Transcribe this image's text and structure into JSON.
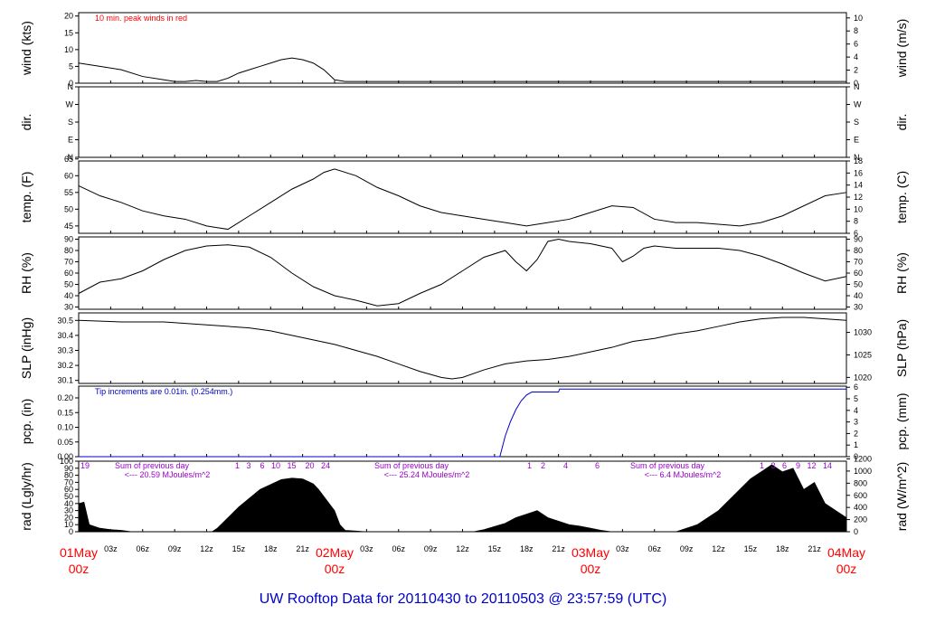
{
  "colors": {
    "axis": "#000000",
    "series": "#000000",
    "peak": "#ff0000",
    "pcp": "#0000cc",
    "annot_purple": "#9900cc",
    "day_label": "#ff0000",
    "title": "#0000cc"
  },
  "chart_data": {
    "type": "line",
    "title": "UW Rooftop Data for 20110430  to  20110503 @ 23:57:59  (UTC)",
    "x_range_hours": [
      0,
      72
    ],
    "x_ticks": [
      "03z",
      "06z",
      "09z",
      "12z",
      "15z",
      "18z",
      "21z",
      "03z",
      "06z",
      "09z",
      "12z",
      "15z",
      "18z",
      "21z",
      "03z",
      "06z",
      "09z",
      "12z",
      "15z",
      "18z",
      "21z"
    ],
    "day_labels": [
      {
        "day": "01May",
        "hour": "00z"
      },
      {
        "day": "02May",
        "hour": "00z"
      },
      {
        "day": "03May",
        "hour": "00z"
      },
      {
        "day": "04May",
        "hour": "00z"
      }
    ],
    "panels": [
      {
        "id": "wind",
        "ylabel_left": "wind (kts)",
        "ylabel_right": "wind (m/s)",
        "ylim": [
          0,
          21
        ],
        "left_ticks": [
          "0",
          "5",
          "10",
          "15",
          "20"
        ],
        "left_tick_values": [
          0,
          5,
          10,
          15,
          20
        ],
        "right_ticks": [
          "0",
          "2",
          "4",
          "6",
          "8",
          "10"
        ],
        "right_tick_values": [
          0,
          3.89,
          7.78,
          11.66,
          15.55,
          19.44
        ],
        "annotation": "10 min. peak winds in red",
        "series": [
          {
            "x": [
              0,
              2,
              4,
              6,
              8,
              9,
              10,
              11,
              12,
              13,
              14,
              15,
              16,
              17,
              18,
              19,
              20,
              21,
              22,
              23,
              24,
              25,
              26,
              27,
              28,
              29,
              30,
              31,
              32,
              33,
              34,
              35,
              36,
              37,
              38,
              39,
              40,
              41,
              42,
              43,
              44,
              45,
              46,
              47,
              48,
              49,
              50,
              51,
              52,
              53,
              54,
              55,
              56,
              57,
              58,
              59,
              60,
              61,
              62,
              63,
              64,
              65,
              66,
              67,
              68,
              69,
              70,
              71,
              72
            ],
            "y": [
              6,
              5,
              4,
              2,
              1,
              0.5,
              0.5,
              0.8,
              0.5,
              0.5,
              1.5,
              3,
              4,
              5,
              6,
              7,
              7.5,
              7,
              6,
              4,
              1,
              0.5,
              0.5,
              0.5,
              0.5,
              0.5,
              0.5,
              0.5,
              0.5,
              0.5,
              0.5,
              0.5,
              0.5,
              0.5,
              0.5,
              0.5,
              0.5,
              0.5,
              0.5,
              0.5,
              0.5,
              0.5,
              0.5,
              0.5,
              0.5,
              0.5,
              0.5,
              0.5,
              0.5,
              0.5,
              0.5,
              0.5,
              0.5,
              0.5,
              0.5,
              0.5,
              0.5,
              0.5,
              0.5,
              0.5,
              0.5,
              0.5,
              0.5,
              0.5,
              0.5,
              0.5,
              0.5,
              0.5,
              0.5
            ]
          }
        ]
      },
      {
        "id": "dir",
        "ylabel_left": "dir.",
        "ylabel_right": "dir.",
        "ylim": [
          0,
          360
        ],
        "left_ticks": [
          "N",
          "E",
          "S",
          "W",
          "N"
        ],
        "left_tick_values": [
          0,
          90,
          180,
          270,
          360
        ],
        "right_ticks": [
          "N",
          "E",
          "S",
          "W",
          "N"
        ],
        "right_tick_values": [
          0,
          90,
          180,
          270,
          360
        ]
      },
      {
        "id": "temp",
        "ylabel_left": "temp. (F)",
        "ylabel_right": "temp. (C)",
        "ylim": [
          42.8,
          64.4
        ],
        "left_ticks": [
          "45",
          "50",
          "55",
          "60",
          "65"
        ],
        "left_tick_values": [
          45,
          50,
          55,
          60,
          65
        ],
        "right_ticks": [
          "6",
          "8",
          "10",
          "12",
          "14",
          "16",
          "18"
        ],
        "right_tick_values": [
          42.8,
          46.4,
          50,
          53.6,
          57.2,
          60.8,
          64.4
        ],
        "series": [
          {
            "x": [
              0,
              2,
              4,
              6,
              8,
              10,
              12,
              13,
              14,
              16,
              18,
              20,
              22,
              23,
              24,
              26,
              28,
              30,
              32,
              34,
              36,
              38,
              40,
              42,
              44,
              46,
              48,
              50,
              52,
              54,
              56,
              58,
              60,
              62,
              64,
              66,
              68,
              70,
              72
            ],
            "y": [
              57,
              54,
              52,
              49.5,
              48,
              47,
              45,
              44.5,
              44,
              48,
              52,
              56,
              59,
              61,
              62,
              60,
              56.5,
              54,
              51,
              49,
              48,
              47,
              46,
              45,
              46,
              47,
              49,
              51,
              50.5,
              47,
              46,
              46,
              45.5,
              45,
              46,
              48,
              51,
              54,
              55
            ]
          }
        ]
      },
      {
        "id": "rh",
        "ylabel_left": "RH (%)",
        "ylabel_right": "RH (%)",
        "ylim": [
          28,
          92
        ],
        "left_ticks": [
          "30",
          "40",
          "50",
          "60",
          "70",
          "80",
          "90"
        ],
        "left_tick_values": [
          30,
          40,
          50,
          60,
          70,
          80,
          90
        ],
        "right_ticks": [
          "30",
          "40",
          "50",
          "60",
          "70",
          "80",
          "90"
        ],
        "right_tick_values": [
          30,
          40,
          50,
          60,
          70,
          80,
          90
        ],
        "series": [
          {
            "x": [
              0,
              2,
              4,
              6,
              8,
              10,
              12,
              14,
              16,
              18,
              20,
              22,
              24,
              26,
              28,
              30,
              32,
              34,
              36,
              38,
              40,
              41,
              42,
              43,
              44,
              45,
              46,
              48,
              50,
              51,
              52,
              53,
              54,
              56,
              58,
              60,
              62,
              64,
              66,
              68,
              70,
              72
            ],
            "y": [
              42,
              52,
              55,
              62,
              72,
              80,
              84,
              85,
              83,
              74,
              60,
              48,
              40,
              36,
              31,
              33,
              42,
              50,
              62,
              74,
              80,
              70,
              62,
              72,
              88,
              90,
              88,
              86,
              82,
              70,
              75,
              82,
              84,
              82,
              82,
              82,
              80,
              75,
              68,
              60,
              53,
              57
            ]
          }
        ]
      },
      {
        "id": "slp",
        "ylabel_left": "SLP (inHg)",
        "ylabel_right": "SLP (hPa)",
        "ylim": [
          30.08,
          30.55
        ],
        "left_ticks": [
          "30.1",
          "30.2",
          "30.3",
          "30.4",
          "30.5"
        ],
        "left_tick_values": [
          30.1,
          30.2,
          30.3,
          30.4,
          30.5
        ],
        "right_ticks": [
          "1020",
          "1025",
          "1030"
        ],
        "right_tick_values": [
          30.12,
          30.27,
          30.42
        ],
        "series": [
          {
            "x": [
              0,
              4,
              8,
              12,
              14,
              16,
              18,
              20,
              22,
              24,
              26,
              28,
              30,
              32,
              34,
              35,
              36,
              38,
              40,
              42,
              44,
              46,
              48,
              50,
              52,
              54,
              56,
              58,
              60,
              62,
              64,
              66,
              68,
              70,
              72
            ],
            "y": [
              30.5,
              30.49,
              30.49,
              30.47,
              30.46,
              30.45,
              30.43,
              30.4,
              30.37,
              30.34,
              30.3,
              30.26,
              30.21,
              30.16,
              30.12,
              30.11,
              30.12,
              30.17,
              30.21,
              30.23,
              30.24,
              30.26,
              30.29,
              30.32,
              30.36,
              30.38,
              30.41,
              30.43,
              30.46,
              30.49,
              30.51,
              30.52,
              30.52,
              30.51,
              30.5
            ]
          }
        ]
      },
      {
        "id": "pcp",
        "ylabel_left": "pcp. (in)",
        "ylabel_right": "pcp. (mm)",
        "ylim": [
          0,
          0.24
        ],
        "left_ticks": [
          "0.00",
          "0.05",
          "0.10",
          "0.15",
          "0.20"
        ],
        "left_tick_values": [
          0,
          0.05,
          0.1,
          0.15,
          0.2
        ],
        "right_ticks": [
          "0",
          "1",
          "2",
          "3",
          "4",
          "5",
          "6"
        ],
        "right_tick_values": [
          0,
          0.0394,
          0.0787,
          0.1181,
          0.1575,
          0.1969,
          0.2362
        ],
        "annotation": "Tip increments are 0.01in. (0.254mm.)",
        "series": [
          {
            "x": [
              0,
              39.5,
              40,
              40.5,
              41,
              41.5,
              42,
              42.5,
              45,
              45.1,
              72
            ],
            "y": [
              0,
              0,
              0.07,
              0.12,
              0.16,
              0.19,
              0.21,
              0.22,
              0.22,
              0.23,
              0.23
            ]
          }
        ]
      },
      {
        "id": "rad",
        "ylabel_left": "rad (Lgly/hr)",
        "ylabel_right": "rad (W/m^2)",
        "ylim": [
          0,
          100
        ],
        "left_ticks": [
          "0",
          "10",
          "20",
          "30",
          "40",
          "50",
          "60",
          "70",
          "80",
          "90",
          "100"
        ],
        "left_tick_values": [
          0,
          10,
          20,
          30,
          40,
          50,
          60,
          70,
          80,
          90,
          100
        ],
        "right_ticks": [
          "0",
          "200",
          "400",
          "600",
          "800",
          "1000",
          "1200"
        ],
        "right_tick_values": [
          0,
          17.2,
          34.4,
          51.6,
          68.8,
          86,
          103.2
        ],
        "hour_labels_top": "19",
        "day1_hours": "1   3    6   10   15    20   24",
        "day2_hours": "1    2        4            6",
        "day3_hours": "1   3   6    9   12   14",
        "sum_labels": [
          {
            "line1": "Sum of previous day",
            "line2": "<--- 20.59 MJoules/m^2"
          },
          {
            "line1": "Sum of previous day",
            "line2": "<--- 25.24 MJoules/m^2"
          },
          {
            "line1": "Sum of previous day",
            "line2": "<--- 6.4 MJoules/m^2"
          }
        ],
        "series": [
          {
            "x": [
              0,
              0.5,
              1,
              2,
              3,
              4,
              5,
              12.5,
              13,
              15,
              17,
              19,
              20,
              21,
              22,
              22.5,
              23,
              24,
              24.5,
              25,
              26,
              27,
              37,
              38,
              40,
              41,
              42,
              43,
              44,
              45,
              46,
              47,
              48,
              49,
              50,
              56,
              58,
              60,
              62,
              63,
              64,
              65,
              66,
              67,
              68,
              69,
              70,
              71,
              72
            ],
            "y": [
              40,
              42,
              10,
              5,
              3,
              2,
              0,
              0,
              5,
              35,
              60,
              74,
              76,
              75,
              68,
              60,
              50,
              30,
              10,
              2,
              1,
              0,
              0,
              3,
              12,
              20,
              25,
              30,
              20,
              15,
              10,
              8,
              5,
              2,
              0,
              0,
              10,
              30,
              60,
              75,
              85,
              95,
              85,
              90,
              60,
              70,
              40,
              30,
              20
            ]
          }
        ]
      }
    ]
  }
}
